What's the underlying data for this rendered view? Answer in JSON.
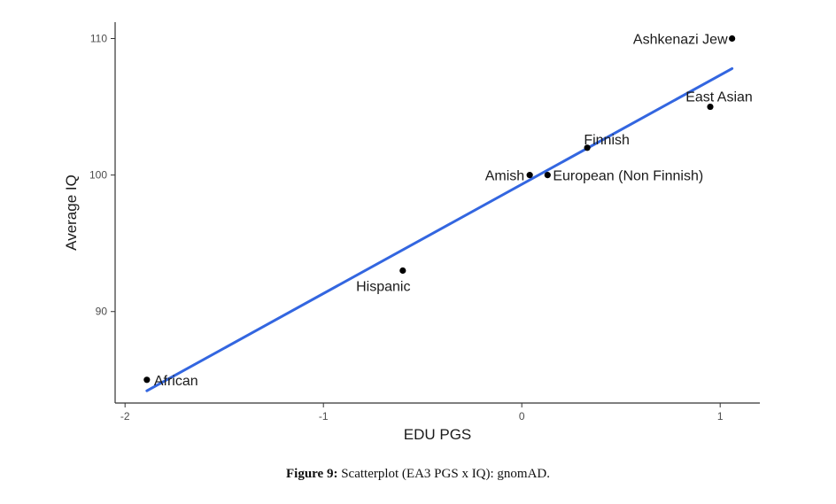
{
  "chart_data": {
    "type": "scatter",
    "xlabel": "EDU PGS",
    "ylabel": "Average IQ",
    "xlim": [
      -2.05,
      1.2
    ],
    "ylim": [
      83.3,
      111.2
    ],
    "x_ticks": [
      -2,
      -1,
      0,
      1
    ],
    "y_ticks": [
      90,
      100,
      110
    ],
    "grid": false,
    "points": [
      {
        "label": "African",
        "x": -1.89,
        "y": 85
      },
      {
        "label": "Hispanic",
        "x": -0.6,
        "y": 93
      },
      {
        "label": "Amish",
        "x": 0.04,
        "y": 100
      },
      {
        "label": "European (Non Finnish)",
        "x": 0.13,
        "y": 100
      },
      {
        "label": "Finnish",
        "x": 0.33,
        "y": 102
      },
      {
        "label": "East Asian",
        "x": 0.95,
        "y": 105
      },
      {
        "label": "Ashkenazi Jew",
        "x": 1.06,
        "y": 110
      }
    ],
    "fit_line": {
      "x": [
        -1.89,
        1.06
      ],
      "y": [
        84.2,
        107.8
      ],
      "color": "#3366e0"
    }
  },
  "caption": {
    "label": "Figure 9:",
    "text": " Scatterplot (EA3 PGS x IQ): gnomAD."
  }
}
